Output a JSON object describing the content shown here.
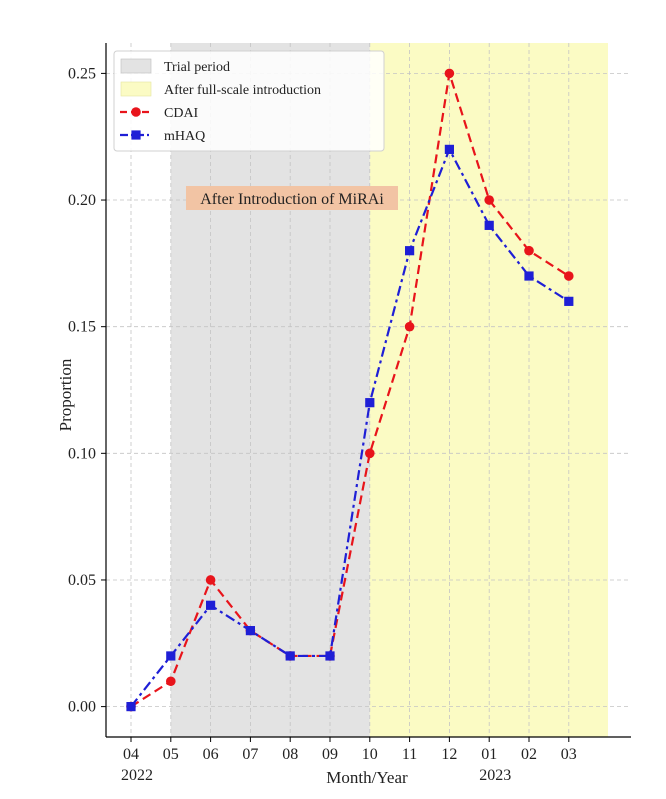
{
  "chart_data": {
    "type": "line",
    "xlabel": "Month/Year",
    "ylabel": "Proportion",
    "categories": [
      "04",
      "05",
      "06",
      "07",
      "08",
      "09",
      "10",
      "11",
      "12",
      "01",
      "02",
      "03"
    ],
    "year_labels": [
      {
        "year": "2022",
        "at_category": "04"
      },
      {
        "year": "2023",
        "at_category": "01"
      }
    ],
    "ylim": [
      -0.012,
      0.262
    ],
    "yticks": [
      "0.00",
      "0.05",
      "0.10",
      "0.15",
      "0.20",
      "0.25"
    ],
    "ytick_values": [
      0.0,
      0.05,
      0.1,
      0.15,
      0.2,
      0.25
    ],
    "series": [
      {
        "name": "CDAI",
        "color": "#e8141b",
        "marker": "circle",
        "linestyle": "dashed",
        "values": [
          0.0,
          0.01,
          0.05,
          0.03,
          0.02,
          0.02,
          0.1,
          0.15,
          0.25,
          0.2,
          0.18,
          0.17
        ]
      },
      {
        "name": "mHAQ",
        "color": "#1f1fd6",
        "marker": "square",
        "linestyle": "dashdot",
        "values": [
          0.0,
          0.02,
          0.04,
          0.03,
          0.02,
          0.02,
          0.12,
          0.18,
          0.22,
          0.19,
          0.17,
          0.16
        ]
      }
    ],
    "spans": [
      {
        "name": "Trial period",
        "from_category_index": 1,
        "to_category_index": 6,
        "color": "#e3e3e3"
      },
      {
        "name": "After full-scale introduction",
        "from_category_index": 6,
        "to_category_index": 12,
        "color": "#fbfbc4"
      }
    ],
    "legend": {
      "position": "top-left",
      "entries": [
        "Trial period",
        "After full-scale introduction",
        "CDAI",
        "mHAQ"
      ]
    },
    "annotation": {
      "text": "After Introduction of MiRAi",
      "background": "#f2c4a4"
    },
    "grid": true
  }
}
